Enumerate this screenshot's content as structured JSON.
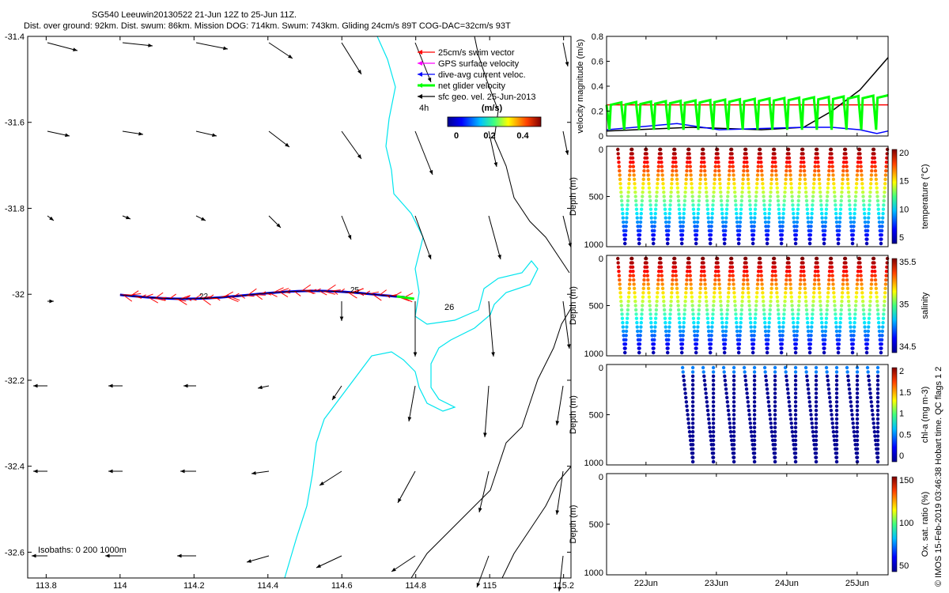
{
  "header": {
    "line1": "SG540 Leeuwin20130522 21-Jun 12Z to 25-Jun 11Z.",
    "line2": "Dist. over ground: 92km. Dist. swum: 86km. Mission DOG: 714km. Swum: 743km. Gliding 24cm/s 89T COG-DAC=32cm/s 93T"
  },
  "footer_right": "© IMOS 15-Feb-2019 03:46:38 Hobart time. QC flags 1  2",
  "colors": {
    "swim": "#ff0000",
    "gps": "#ff00ff",
    "dac": "#0000ff",
    "net": "#00ff00",
    "geo": "#000000",
    "isobath_cyan": "#00e5ee"
  },
  "chart_data": [
    {
      "id": "map",
      "type": "scatter",
      "x_ticks": [
        "113.8",
        "114",
        "114.2",
        "114.4",
        "114.6",
        "114.8",
        "115",
        "115.2"
      ],
      "y_ticks": [
        "-31.4",
        "-31.6",
        "-31.8",
        "-32",
        "-32.2",
        "-32.4",
        "-32.6"
      ],
      "xlim": [
        113.75,
        115.22
      ],
      "ylim": [
        -32.66,
        -31.4
      ],
      "legend": {
        "entries": [
          "25cm/s swim vector",
          "GPS surface velocity",
          "dive-avg current veloc.",
          "net glider velocity",
          "sfc geo. vel. 25-Jun-2013"
        ],
        "duration": "4h",
        "colorbar_label": "(m/s)",
        "colorbar_ticks": [
          "0",
          "0.2",
          "0.4"
        ]
      },
      "track_labels": [
        "22",
        "25",
        "26"
      ],
      "isobaths_label": "Isobaths: 0   200  1000m",
      "track": {
        "lon_start": 114.0,
        "lon_end": 114.77,
        "lat_mean": -32.005
      }
    },
    {
      "id": "velocity",
      "type": "line",
      "ylabel": "velocity magnitude (m/s)",
      "ylim": [
        0,
        0.8
      ],
      "y_ticks": [
        "0",
        "0.2",
        "0.4",
        "0.6",
        "0.8"
      ],
      "x_ticks": [
        "22Jun",
        "23Jun",
        "24Jun",
        "25Jun"
      ],
      "series": [
        {
          "color": "#ff0000",
          "values": [
            [
              0,
              0.25
            ],
            [
              1,
              0.25
            ]
          ]
        },
        {
          "color": "#000000",
          "values": [
            [
              0,
              0.04
            ],
            [
              0.3,
              0.07
            ],
            [
              0.55,
              0.05
            ],
            [
              0.7,
              0.07
            ],
            [
              0.8,
              0.2
            ],
            [
              0.9,
              0.37
            ],
            [
              1,
              0.63
            ]
          ]
        },
        {
          "color": "#0000ff",
          "values": [
            [
              0,
              0.05
            ],
            [
              0.1,
              0.07
            ],
            [
              0.25,
              0.1
            ],
            [
              0.4,
              0.05
            ],
            [
              0.55,
              0.06
            ],
            [
              0.7,
              0.07
            ],
            [
              0.8,
              0.07
            ],
            [
              0.9,
              0.05
            ],
            [
              0.96,
              0.02
            ],
            [
              1,
              0.04
            ]
          ]
        },
        {
          "color": "#00ff00",
          "values": [
            [
              0,
              0.25
            ],
            [
              0.15,
              0.27
            ],
            [
              0.3,
              0.25
            ],
            [
              0.5,
              0.27
            ],
            [
              0.7,
              0.27
            ],
            [
              0.85,
              0.29
            ],
            [
              1,
              0.33
            ]
          ]
        }
      ]
    },
    {
      "id": "temperature",
      "type": "scatter",
      "ylabel": "Depth (m)",
      "cbar_label": "temperature (°C)",
      "cbar_ticks": [
        "5",
        "10",
        "15",
        "20"
      ],
      "y_ticks": [
        "0",
        "500",
        "1000"
      ],
      "ylim": [
        0,
        1000
      ],
      "dives": 19,
      "dive_start": 0.04,
      "dive_end": 1.0
    },
    {
      "id": "salinity",
      "type": "scatter",
      "ylabel": "Depth (m)",
      "cbar_label": "salinity",
      "cbar_ticks": [
        "34.5",
        "35",
        "35.5"
      ],
      "y_ticks": [
        "0",
        "500",
        "1000"
      ],
      "ylim": [
        0,
        1000
      ],
      "dives": 19,
      "dive_start": 0.04,
      "dive_end": 1.0
    },
    {
      "id": "chla",
      "type": "scatter",
      "ylabel": "Depth (m)",
      "cbar_label": "chl-a (mg m-3)",
      "cbar_ticks": [
        "0",
        "0.5",
        "1",
        "1.5",
        "2"
      ],
      "y_ticks": [
        "0",
        "500",
        "1000"
      ],
      "ylim": [
        0,
        1000
      ],
      "dives": 10,
      "dive_start": 0.27,
      "dive_end": 1.0
    },
    {
      "id": "oxygen",
      "type": "scatter",
      "ylabel": "Depth (m)",
      "cbar_label": "Ox. sat. ratio (%)",
      "cbar_ticks": [
        "50",
        "100",
        "150"
      ],
      "y_ticks": [
        "0",
        "500",
        "1000"
      ],
      "ylim": [
        0,
        1000
      ],
      "dives": 0
    }
  ]
}
